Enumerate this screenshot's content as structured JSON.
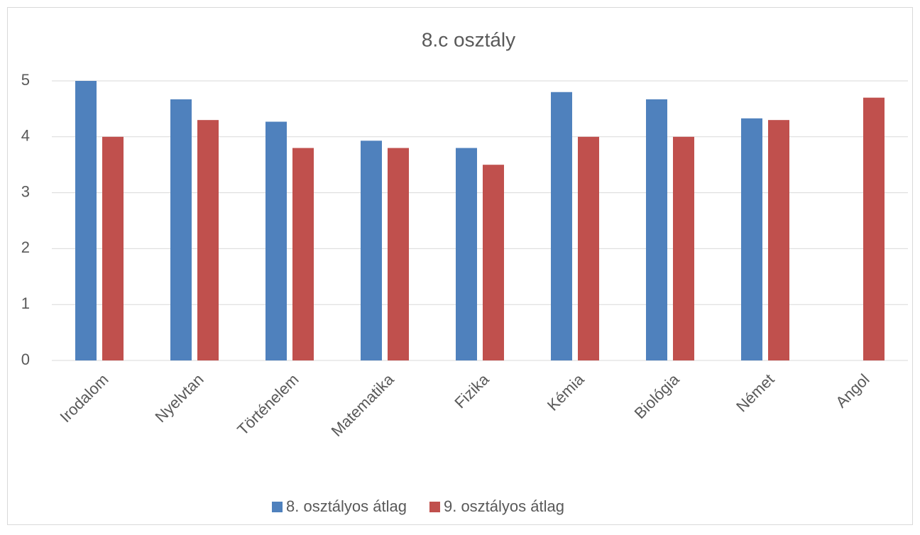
{
  "chart_data": {
    "type": "bar",
    "title": "8.c osztály",
    "categories": [
      "Irodalom",
      "Nyelvtan",
      "Történelem",
      "Matematika",
      "Fizika",
      "Kémia",
      "Biológia",
      "Német",
      "Angol"
    ],
    "series": [
      {
        "name": "8. osztályos átlag",
        "color": "#4f81bd",
        "values": [
          5.0,
          4.67,
          4.27,
          3.93,
          3.8,
          4.8,
          4.67,
          4.33,
          null
        ]
      },
      {
        "name": "9. osztályos átlag",
        "color": "#c0504d",
        "values": [
          4.0,
          4.3,
          3.8,
          3.8,
          3.5,
          4.0,
          4.0,
          4.3,
          4.7
        ]
      }
    ],
    "ylim": [
      0,
      5
    ],
    "yticks": [
      0,
      1,
      2,
      3,
      4,
      5
    ],
    "grid": true,
    "legend": "bottom"
  }
}
